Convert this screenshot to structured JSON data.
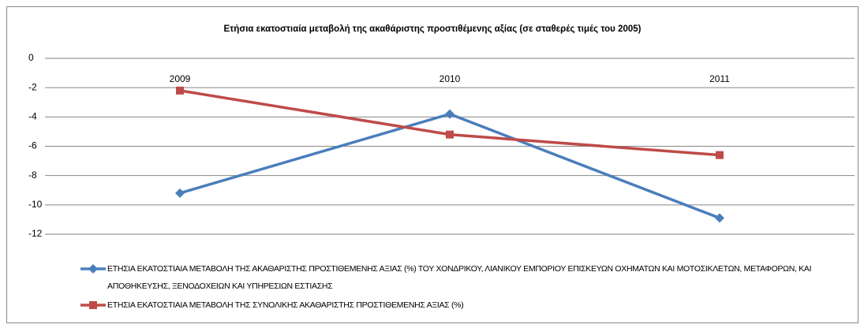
{
  "chart_data": {
    "type": "line",
    "title": "Ετήσια εκατοστιαία μεταβολή της ακαθάριστης προστιθέμενης αξίας (σε σταθερές τιμές του 2005)",
    "categories": [
      "2009",
      "2010",
      "2011"
    ],
    "series": [
      {
        "name": "ΕΤΗΣΙΑ ΕΚΑΤΟΣΤΙΑΙΑ ΜΕΤΑΒΟΛΗ ΤΗΣ ΑΚΑΘΑΡΙΣΤΗΣ ΠΡΟΣΤΙΘΕΜΕΝΗΣ ΑΞΙΑΣ (%) ΤΟΥ ΧΟΝΔΡΙΚΟΥ, ΛΙΑΝΙΚΟΥ ΕΜΠΟΡΙΟΥ ΕΠΙΣΚΕΥΩΝ ΟΧΗΜΑΤΩΝ ΚΑΙ ΜΟΤΟΣΙΚΛΕΤΩΝ, ΜΕΤΑΦΟΡΩΝ, ΚΑΙ ΑΠΟΘΗΚΕΥΣΗΣ, ΞΕΝΟΔΟΧΕΙΩΝ ΚΑΙ ΥΠΗΡΕΣΙΩΝ ΕΣΤΙΑΣΗΣ",
        "color": "#4a7ebb",
        "marker": "diamond",
        "values": [
          -9.2,
          -3.8,
          -10.9
        ]
      },
      {
        "name": "ΕΤΗΣΙΑ ΕΚΑΤΟΣΤΙΑΙΑ ΜΕΤΑΒΟΛΗ ΤΗΣ ΣΥΝΟΛΙΚΗΣ ΑΚΑΘΑΡΙΣΤΗΣ ΠΡΟΣΤΙΘΕΜΕΝΗΣ ΑΞΙΑΣ (%)",
        "color": "#be4b48",
        "marker": "square",
        "values": [
          -2.2,
          -5.2,
          -6.6
        ]
      }
    ],
    "ylim": [
      -12,
      0
    ],
    "yticks": [
      0,
      -2,
      -4,
      -6,
      -8,
      -10,
      -12
    ],
    "grid": true,
    "legend": "bottom"
  }
}
